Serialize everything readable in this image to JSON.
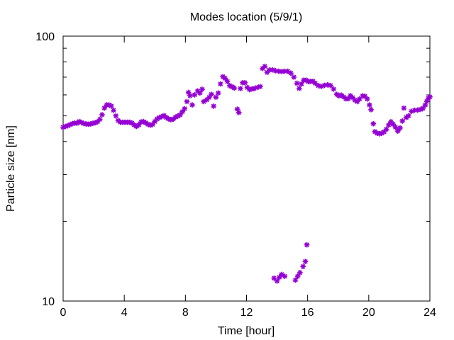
{
  "chart_data": {
    "type": "scatter",
    "title": "Modes location (5/9/1)",
    "xlabel": "Time [hour]",
    "ylabel": "Particle size [nm]",
    "xlim": [
      0,
      24
    ],
    "ylim": [
      10,
      100
    ],
    "yscale": "log",
    "grid": false,
    "legend": "none",
    "x_ticks": [
      0,
      4,
      8,
      12,
      16,
      20,
      24
    ],
    "y_ticks": [
      10,
      100
    ],
    "x_tick_labels": [
      "0",
      "4",
      "8",
      "12",
      "16",
      "20",
      "24"
    ],
    "y_tick_labels": [
      "10",
      "100"
    ],
    "marker_color": "#9400d3",
    "series": [
      {
        "points": [
          [
            0.0,
            45.3
          ],
          [
            0.15,
            45.6
          ],
          [
            0.3,
            45.9
          ],
          [
            0.45,
            46.3
          ],
          [
            0.6,
            46.7
          ],
          [
            0.75,
            47.0
          ],
          [
            0.9,
            46.9
          ],
          [
            1.05,
            47.6
          ],
          [
            1.2,
            47.2
          ],
          [
            1.35,
            46.8
          ],
          [
            1.5,
            46.6
          ],
          [
            1.65,
            46.5
          ],
          [
            1.8,
            46.6
          ],
          [
            1.95,
            46.9
          ],
          [
            2.1,
            47.1
          ],
          [
            2.25,
            47.5
          ],
          [
            2.4,
            48.5
          ],
          [
            2.55,
            50.5
          ],
          [
            2.7,
            53.5
          ],
          [
            2.85,
            55.0
          ],
          [
            3.0,
            55.0
          ],
          [
            3.15,
            54.5
          ],
          [
            3.3,
            52.5
          ],
          [
            3.45,
            50.0
          ],
          [
            3.6,
            48.0
          ],
          [
            3.75,
            47.3
          ],
          [
            3.9,
            47.3
          ],
          [
            4.05,
            47.3
          ],
          [
            4.2,
            47.3
          ],
          [
            4.35,
            47.3
          ],
          [
            4.5,
            47.0
          ],
          [
            4.65,
            46.2
          ],
          [
            4.8,
            45.6
          ],
          [
            4.95,
            46.2
          ],
          [
            5.1,
            47.4
          ],
          [
            5.25,
            47.6
          ],
          [
            5.4,
            47.1
          ],
          [
            5.55,
            46.5
          ],
          [
            5.7,
            46.1
          ],
          [
            5.85,
            46.4
          ],
          [
            6.0,
            47.6
          ],
          [
            6.15,
            48.7
          ],
          [
            6.3,
            49.3
          ],
          [
            6.45,
            49.7
          ],
          [
            6.6,
            50.1
          ],
          [
            6.75,
            49.3
          ],
          [
            6.9,
            48.7
          ],
          [
            7.05,
            48.4
          ],
          [
            7.2,
            48.6
          ],
          [
            7.35,
            49.4
          ],
          [
            7.5,
            49.9
          ],
          [
            7.65,
            50.4
          ],
          [
            7.8,
            51.8
          ],
          [
            7.95,
            53.2
          ],
          [
            8.1,
            56.6
          ],
          [
            8.2,
            61.3
          ],
          [
            8.3,
            59.6
          ],
          [
            8.45,
            55.0
          ],
          [
            8.6,
            60.0
          ],
          [
            8.8,
            62.1
          ],
          [
            8.95,
            61.0
          ],
          [
            9.1,
            63.0
          ],
          [
            9.2,
            56.6
          ],
          [
            9.4,
            57.5
          ],
          [
            9.55,
            58.7
          ],
          [
            9.7,
            60.3
          ],
          [
            9.85,
            54.4
          ],
          [
            10.0,
            58.8
          ],
          [
            10.15,
            61.0
          ],
          [
            10.3,
            66.0
          ],
          [
            10.45,
            70.3
          ],
          [
            10.6,
            69.3
          ],
          [
            10.75,
            67.4
          ],
          [
            10.9,
            65.0
          ],
          [
            11.05,
            64.4
          ],
          [
            11.2,
            63.7
          ],
          [
            11.4,
            53.0
          ],
          [
            11.5,
            51.5
          ],
          [
            11.6,
            63.4
          ],
          [
            11.75,
            66.7
          ],
          [
            11.9,
            66.7
          ],
          [
            12.05,
            64.0
          ],
          [
            12.2,
            62.8
          ],
          [
            12.35,
            63.2
          ],
          [
            12.5,
            63.4
          ],
          [
            12.7,
            64.0
          ],
          [
            12.9,
            64.5
          ],
          [
            13.05,
            75.5
          ],
          [
            13.2,
            76.9
          ],
          [
            13.35,
            73.0
          ],
          [
            13.5,
            74.5
          ],
          [
            13.7,
            74.6
          ],
          [
            13.9,
            74.0
          ],
          [
            14.1,
            73.7
          ],
          [
            14.3,
            73.5
          ],
          [
            14.5,
            73.7
          ],
          [
            14.7,
            73.7
          ],
          [
            14.9,
            72.5
          ],
          [
            15.1,
            70.0
          ],
          [
            15.3,
            66.4
          ],
          [
            15.45,
            63.5
          ],
          [
            15.6,
            66.0
          ],
          [
            15.75,
            68.2
          ],
          [
            15.9,
            68.2
          ],
          [
            16.05,
            67.3
          ],
          [
            16.2,
            67.5
          ],
          [
            16.35,
            67.5
          ],
          [
            16.5,
            66.4
          ],
          [
            16.7,
            65.0
          ],
          [
            16.9,
            64.6
          ],
          [
            17.1,
            65.2
          ],
          [
            17.3,
            65.5
          ],
          [
            17.5,
            65.1
          ],
          [
            17.7,
            63.1
          ],
          [
            17.9,
            60.3
          ],
          [
            18.05,
            59.5
          ],
          [
            18.2,
            59.9
          ],
          [
            18.35,
            59.0
          ],
          [
            18.5,
            58.0
          ],
          [
            18.65,
            58.0
          ],
          [
            18.8,
            59.6
          ],
          [
            18.95,
            58.6
          ],
          [
            19.1,
            57.3
          ],
          [
            19.25,
            56.6
          ],
          [
            19.4,
            57.9
          ],
          [
            19.6,
            59.5
          ],
          [
            19.75,
            59.3
          ],
          [
            19.9,
            57.9
          ],
          [
            20.05,
            55.0
          ],
          [
            20.15,
            52.8
          ],
          [
            20.3,
            46.7
          ],
          [
            20.4,
            43.6
          ],
          [
            20.55,
            43.0
          ],
          [
            20.7,
            42.8
          ],
          [
            20.85,
            43.0
          ],
          [
            21.0,
            43.5
          ],
          [
            21.15,
            44.5
          ],
          [
            21.3,
            46.2
          ],
          [
            21.45,
            47.5
          ],
          [
            21.6,
            46.5
          ],
          [
            21.75,
            45.3
          ],
          [
            21.9,
            43.8
          ],
          [
            22.05,
            45.0
          ],
          [
            22.2,
            47.8
          ],
          [
            22.3,
            53.5
          ],
          [
            22.45,
            49.3
          ],
          [
            22.6,
            50.0
          ],
          [
            22.8,
            52.0
          ],
          [
            23.0,
            52.5
          ],
          [
            23.2,
            52.6
          ],
          [
            23.4,
            52.9
          ],
          [
            23.55,
            53.4
          ],
          [
            23.7,
            55.0
          ],
          [
            23.8,
            56.7
          ],
          [
            23.9,
            58.2
          ],
          [
            24.0,
            59.0
          ],
          [
            13.8,
            12.2
          ],
          [
            14.0,
            11.9
          ],
          [
            14.15,
            12.3
          ],
          [
            14.3,
            12.6
          ],
          [
            14.5,
            12.4
          ],
          [
            15.2,
            12.0
          ],
          [
            15.35,
            12.4
          ],
          [
            15.5,
            12.8
          ],
          [
            15.7,
            13.5
          ],
          [
            15.85,
            14.1
          ],
          [
            15.95,
            16.3
          ]
        ]
      }
    ]
  }
}
